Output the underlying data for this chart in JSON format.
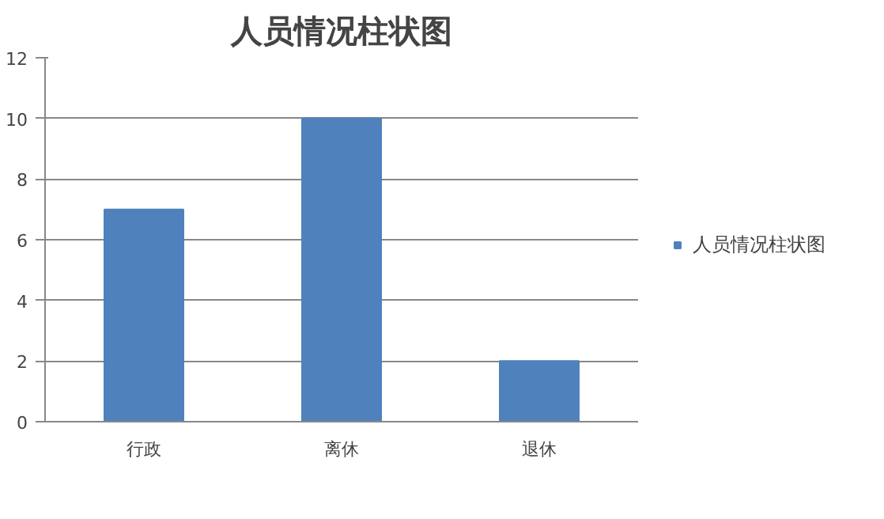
{
  "chart_data": {
    "type": "bar",
    "title": "人员情况柱状图",
    "categories": [
      "行政",
      "离休",
      "退休"
    ],
    "series": [
      {
        "name": "人员情况柱状图",
        "color": "#4f81bd",
        "values": [
          7,
          10,
          2
        ]
      }
    ],
    "ylim": [
      0,
      12
    ],
    "yticks": [
      0,
      2,
      4,
      6,
      8,
      10,
      12
    ],
    "grid": "y",
    "legend": "right"
  }
}
